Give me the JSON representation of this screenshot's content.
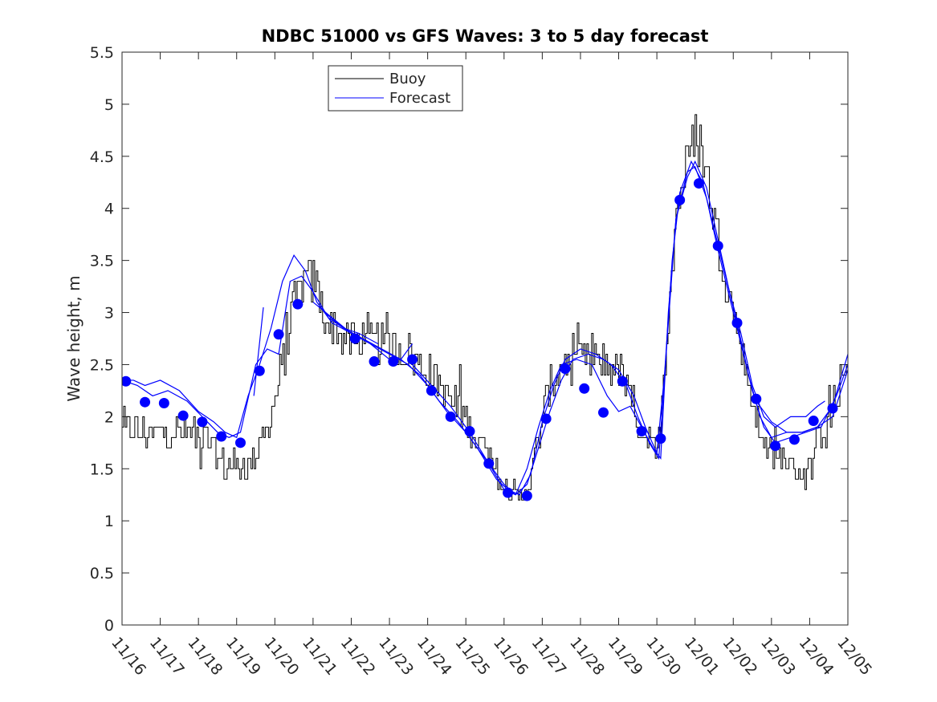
{
  "chart_data": {
    "type": "line",
    "title": "NDBC 51000 vs GFS Waves: 3 to 5 day forecast",
    "xlabel": "",
    "ylabel": "Wave height, m",
    "xlim": [
      0,
      19
    ],
    "ylim": [
      0,
      5.5
    ],
    "yticks": [
      0,
      0.5,
      1,
      1.5,
      2,
      2.5,
      3,
      3.5,
      4,
      4.5,
      5,
      5.5
    ],
    "ytick_labels": [
      "0",
      "0.5",
      "1",
      "1.5",
      "2",
      "2.5",
      "3",
      "3.5",
      "4",
      "4.5",
      "5",
      "5.5"
    ],
    "xtick_labels": [
      "11/16",
      "11/17",
      "11/18",
      "11/19",
      "11/20",
      "11/21",
      "11/22",
      "11/23",
      "11/24",
      "11/25",
      "11/26",
      "11/27",
      "11/28",
      "11/29",
      "11/30",
      "12/01",
      "12/02",
      "12/03",
      "12/04",
      "12/05"
    ],
    "legend": {
      "position": "top-center",
      "entries": [
        "Buoy",
        "Forecast"
      ]
    },
    "colors": {
      "buoy": "#000000",
      "forecast": "#0000ff"
    },
    "buoy_anchors": [
      [
        0,
        1.9
      ],
      [
        0.5,
        1.85
      ],
      [
        1,
        1.85
      ],
      [
        1.5,
        1.85
      ],
      [
        2,
        1.8
      ],
      [
        2.3,
        1.75
      ],
      [
        2.5,
        1.6
      ],
      [
        2.7,
        1.5
      ],
      [
        3,
        1.5
      ],
      [
        3.3,
        1.55
      ],
      [
        3.6,
        1.7
      ],
      [
        3.8,
        1.9
      ],
      [
        4,
        2.2
      ],
      [
        4.2,
        2.5
      ],
      [
        4.4,
        2.9
      ],
      [
        4.6,
        3.2
      ],
      [
        4.8,
        3.3
      ],
      [
        5,
        3.3
      ],
      [
        5.2,
        3.1
      ],
      [
        5.4,
        2.9
      ],
      [
        5.7,
        2.8
      ],
      [
        6,
        2.7
      ],
      [
        6.5,
        2.75
      ],
      [
        7,
        2.65
      ],
      [
        7.5,
        2.6
      ],
      [
        8,
        2.45
      ],
      [
        8.5,
        2.2
      ],
      [
        9,
        1.95
      ],
      [
        9.5,
        1.65
      ],
      [
        9.8,
        1.45
      ],
      [
        10,
        1.3
      ],
      [
        10.3,
        1.25
      ],
      [
        10.6,
        1.3
      ],
      [
        10.8,
        1.6
      ],
      [
        11,
        2.0
      ],
      [
        11.2,
        2.3
      ],
      [
        11.5,
        2.5
      ],
      [
        12,
        2.55
      ],
      [
        12.5,
        2.55
      ],
      [
        13,
        2.45
      ],
      [
        13.3,
        2.15
      ],
      [
        13.6,
        1.85
      ],
      [
        13.9,
        1.65
      ],
      [
        14,
        1.6
      ],
      [
        14.15,
        2.3
      ],
      [
        14.35,
        3.3
      ],
      [
        14.5,
        4.0
      ],
      [
        14.7,
        4.3
      ],
      [
        14.9,
        4.6
      ],
      [
        15.05,
        4.7
      ],
      [
        15.2,
        4.5
      ],
      [
        15.4,
        4.1
      ],
      [
        15.6,
        3.7
      ],
      [
        15.8,
        3.3
      ],
      [
        16,
        3.0
      ],
      [
        16.2,
        2.7
      ],
      [
        16.4,
        2.3
      ],
      [
        16.6,
        1.95
      ],
      [
        16.8,
        1.75
      ],
      [
        17,
        1.6
      ],
      [
        17.3,
        1.6
      ],
      [
        17.6,
        1.5
      ],
      [
        17.9,
        1.45
      ],
      [
        18.1,
        1.6
      ],
      [
        18.3,
        1.85
      ],
      [
        18.6,
        2.0
      ],
      [
        19,
        2.55
      ]
    ],
    "forecast_lines": [
      [
        [
          0,
          2.35
        ],
        [
          0.4,
          2.3
        ],
        [
          0.8,
          2.2
        ],
        [
          1.2,
          2.25
        ],
        [
          1.7,
          2.15
        ],
        [
          2.1,
          2.0
        ],
        [
          2.5,
          1.85
        ],
        [
          2.8,
          1.8
        ],
        [
          3.1,
          1.85
        ],
        [
          3.5,
          2.5
        ],
        [
          3.8,
          2.65
        ],
        [
          4.1,
          2.6
        ],
        [
          4.4,
          3.3
        ],
        [
          4.7,
          3.35
        ],
        [
          5.0,
          3.2
        ],
        [
          5.4,
          2.95
        ],
        [
          5.8,
          2.85
        ],
        [
          6.2,
          2.8
        ],
        [
          6.7,
          2.7
        ]
      ],
      [
        [
          0,
          2.35
        ],
        [
          0.3,
          2.35
        ],
        [
          0.6,
          2.3
        ],
        [
          1.0,
          2.35
        ],
        [
          1.5,
          2.25
        ],
        [
          2.0,
          2.05
        ],
        [
          2.4,
          1.95
        ],
        [
          2.7,
          1.85
        ],
        [
          3.0,
          1.8
        ],
        [
          3.3,
          2.2
        ],
        [
          3.6,
          2.5
        ],
        [
          3.9,
          2.85
        ],
        [
          4.2,
          3.3
        ],
        [
          4.5,
          3.55
        ],
        [
          4.8,
          3.4
        ],
        [
          5.1,
          3.1
        ],
        [
          5.5,
          2.9
        ],
        [
          6.0,
          2.8
        ],
        [
          6.5,
          2.7
        ],
        [
          7.0,
          2.55
        ],
        [
          7.3,
          2.55
        ],
        [
          7.6,
          2.7
        ]
      ],
      [
        [
          3.7,
          3.05
        ]
      ],
      [
        [
          5.0,
          3.1
        ],
        [
          5.5,
          2.95
        ],
        [
          6.0,
          2.8
        ],
        [
          6.5,
          2.7
        ],
        [
          7.0,
          2.6
        ],
        [
          7.5,
          2.5
        ],
        [
          8.0,
          2.3
        ],
        [
          8.5,
          2.05
        ],
        [
          9.0,
          1.85
        ],
        [
          9.5,
          1.6
        ],
        [
          10.0,
          1.35
        ],
        [
          10.3,
          1.25
        ],
        [
          10.6,
          1.35
        ],
        [
          10.9,
          1.7
        ],
        [
          11.2,
          2.05
        ],
        [
          11.5,
          2.35
        ],
        [
          11.8,
          2.55
        ],
        [
          12.2,
          2.6
        ],
        [
          12.6,
          2.55
        ],
        [
          13.0,
          2.45
        ],
        [
          13.4,
          2.2
        ],
        [
          13.7,
          1.9
        ],
        [
          14.0,
          1.65
        ],
        [
          14.2,
          2.4
        ],
        [
          14.4,
          3.5
        ],
        [
          14.6,
          4.15
        ],
        [
          14.9,
          4.45
        ],
        [
          15.2,
          4.25
        ],
        [
          15.5,
          3.8
        ],
        [
          15.8,
          3.35
        ],
        [
          16.1,
          2.9
        ],
        [
          16.4,
          2.4
        ],
        [
          16.7,
          2.0
        ],
        [
          17.0,
          1.8
        ],
        [
          17.4,
          1.85
        ],
        [
          17.8,
          1.85
        ],
        [
          18.2,
          1.9
        ],
        [
          18.6,
          2.1
        ],
        [
          19,
          2.6
        ]
      ],
      [
        [
          5.3,
          3.0
        ],
        [
          5.8,
          2.85
        ],
        [
          6.3,
          2.75
        ],
        [
          6.8,
          2.65
        ],
        [
          7.3,
          2.55
        ],
        [
          7.8,
          2.4
        ],
        [
          8.3,
          2.15
        ],
        [
          8.8,
          1.95
        ],
        [
          9.3,
          1.7
        ],
        [
          9.8,
          1.4
        ],
        [
          10.1,
          1.3
        ],
        [
          10.4,
          1.25
        ],
        [
          10.7,
          1.45
        ],
        [
          11.0,
          1.95
        ],
        [
          11.3,
          2.3
        ],
        [
          11.6,
          2.55
        ],
        [
          12.0,
          2.65
        ],
        [
          12.4,
          2.6
        ],
        [
          12.8,
          2.5
        ],
        [
          13.2,
          2.3
        ],
        [
          13.5,
          2.0
        ],
        [
          13.8,
          1.75
        ],
        [
          14.05,
          1.6
        ],
        [
          14.3,
          2.9
        ],
        [
          14.5,
          3.9
        ],
        [
          14.8,
          4.35
        ],
        [
          15.0,
          4.4
        ],
        [
          15.3,
          4.1
        ],
        [
          15.6,
          3.6
        ],
        [
          15.9,
          3.15
        ],
        [
          16.2,
          2.7
        ],
        [
          16.5,
          2.25
        ],
        [
          16.8,
          1.9
        ],
        [
          17.1,
          1.75
        ],
        [
          17.5,
          1.8
        ],
        [
          17.9,
          1.85
        ],
        [
          18.3,
          1.9
        ],
        [
          18.7,
          2.2
        ],
        [
          19,
          2.5
        ]
      ],
      [
        [
          7.6,
          2.5
        ],
        [
          8.1,
          2.3
        ],
        [
          8.6,
          2.1
        ],
        [
          9.1,
          1.85
        ],
        [
          9.6,
          1.55
        ],
        [
          10.0,
          1.3
        ],
        [
          10.3,
          1.25
        ],
        [
          10.6,
          1.5
        ],
        [
          10.9,
          1.9
        ],
        [
          11.2,
          2.25
        ],
        [
          11.5,
          2.5
        ],
        [
          11.9,
          2.55
        ],
        [
          12.3,
          2.5
        ],
        [
          12.7,
          2.2
        ],
        [
          13.0,
          2.05
        ],
        [
          13.3,
          2.1
        ],
        [
          13.6,
          1.9
        ],
        [
          13.9,
          1.7
        ],
        [
          14.1,
          1.6
        ],
        [
          14.3,
          3.0
        ],
        [
          14.5,
          3.9
        ],
        [
          14.8,
          4.3
        ],
        [
          15.0,
          4.45
        ],
        [
          15.3,
          4.2
        ],
        [
          15.6,
          3.7
        ],
        [
          15.9,
          3.2
        ],
        [
          16.2,
          2.8
        ],
        [
          16.5,
          2.3
        ],
        [
          16.8,
          2.0
        ],
        [
          17.1,
          1.9
        ],
        [
          17.5,
          2.0
        ],
        [
          17.9,
          2.0
        ],
        [
          18.2,
          2.1
        ],
        [
          18.4,
          2.15
        ]
      ],
      [
        [
          16.6,
          2.15
        ],
        [
          17.0,
          1.95
        ],
        [
          17.4,
          1.85
        ],
        [
          17.8,
          1.85
        ],
        [
          18.2,
          1.9
        ],
        [
          18.6,
          2.0
        ],
        [
          19.0,
          2.45
        ]
      ]
    ],
    "forecast_points": [
      [
        0.1,
        2.34
      ],
      [
        0.6,
        2.14
      ],
      [
        1.1,
        2.13
      ],
      [
        1.6,
        2.01
      ],
      [
        2.1,
        1.95
      ],
      [
        2.6,
        1.81
      ],
      [
        3.1,
        1.75
      ],
      [
        3.6,
        2.44
      ],
      [
        4.1,
        2.79
      ],
      [
        4.6,
        3.08
      ],
      [
        6.1,
        2.75
      ],
      [
        6.6,
        2.53
      ],
      [
        7.1,
        2.53
      ],
      [
        7.6,
        2.55
      ],
      [
        8.1,
        2.25
      ],
      [
        8.6,
        2.0
      ],
      [
        9.1,
        1.86
      ],
      [
        9.6,
        1.55
      ],
      [
        10.1,
        1.27
      ],
      [
        10.6,
        1.24
      ],
      [
        11.1,
        1.98
      ],
      [
        11.6,
        2.46
      ],
      [
        12.1,
        2.27
      ],
      [
        12.6,
        2.04
      ],
      [
        13.1,
        2.34
      ],
      [
        13.6,
        1.86
      ],
      [
        14.1,
        1.79
      ],
      [
        14.6,
        4.08
      ],
      [
        15.1,
        4.24
      ],
      [
        15.6,
        3.64
      ],
      [
        16.1,
        2.9
      ],
      [
        16.6,
        2.17
      ],
      [
        17.1,
        1.72
      ],
      [
        17.6,
        1.78
      ],
      [
        18.1,
        1.96
      ],
      [
        18.6,
        2.08
      ]
    ]
  }
}
